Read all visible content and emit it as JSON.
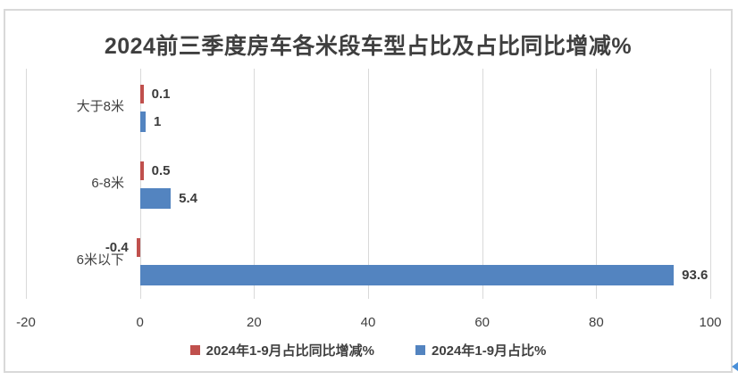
{
  "title": "2024前三季度房车各米段车型占比及占比同比增减%",
  "chart_data": {
    "type": "bar",
    "orientation": "horizontal",
    "title": "2024前三季度房车各米段车型占比及占比同比增减%",
    "categories": [
      "大于8米",
      "6-8米",
      "6米以下"
    ],
    "series": [
      {
        "name": "2024年1-9月占比同比增减%",
        "color": "#c0504d",
        "values": [
          0.1,
          0.5,
          -0.4
        ]
      },
      {
        "name": "2024年1-9月占比%",
        "color": "#5384c0",
        "values": [
          1,
          5.4,
          93.6
        ]
      }
    ],
    "data_labels": [
      "0.1",
      "1",
      "0.5",
      "5.4",
      "-0.4",
      "93.6"
    ],
    "xlabel": "",
    "ylabel": "",
    "xlim": [
      -20,
      100
    ],
    "x_ticks": [
      "-20",
      "0",
      "20",
      "40",
      "60",
      "80",
      "100"
    ],
    "grid": true,
    "legend_position": "bottom"
  },
  "colors": {
    "series_decrease": "#c0504d",
    "series_share": "#5384c0",
    "gridline": "#d9d9d9",
    "text": "#404040",
    "title_text": "#3f3f3f",
    "frame_border": "#d9d9d9",
    "handle_blue": "#4a90d9"
  }
}
